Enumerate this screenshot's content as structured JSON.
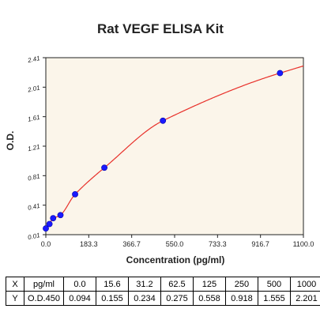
{
  "chart_data": {
    "type": "scatter",
    "title": "Rat VEGF ELISA Kit",
    "xlabel": "Concentration (pg/ml)",
    "ylabel": "O.D.",
    "xlim": [
      0,
      1100
    ],
    "ylim": [
      0.01,
      2.41
    ],
    "xticks": [
      0,
      183.3,
      366.7,
      550.0,
      733.3,
      916.7,
      1100.0
    ],
    "xtick_labels": [
      "0.0",
      "183.3",
      "366.7",
      "550.0",
      "733.3",
      "916.7",
      "1100.0"
    ],
    "yticks": [
      0.01,
      0.41,
      0.81,
      1.21,
      1.61,
      2.01,
      2.41
    ],
    "ytick_labels": [
      "0.01",
      "0.41",
      "0.81",
      "1.21",
      "1.61",
      "2.01",
      "2.41"
    ],
    "points": [
      {
        "x": 0.0,
        "y": 0.094
      },
      {
        "x": 15.6,
        "y": 0.155
      },
      {
        "x": 31.2,
        "y": 0.234
      },
      {
        "x": 62.5,
        "y": 0.275
      },
      {
        "x": 125,
        "y": 0.558
      },
      {
        "x": 250,
        "y": 0.918
      },
      {
        "x": 500,
        "y": 1.555
      },
      {
        "x": 1000,
        "y": 2.201
      }
    ],
    "curve_color": "#e8302a",
    "point_color": "#1a1aff",
    "plot_bg": "#fbf5ea",
    "grid": false
  },
  "table": {
    "rows": [
      [
        "X",
        "pg/ml",
        "0.0",
        "15.6",
        "31.2",
        "62.5",
        "125",
        "250",
        "500",
        "1000"
      ],
      [
        "Y",
        "O.D.450",
        "0.094",
        "0.155",
        "0.234",
        "0.275",
        "0.558",
        "0.918",
        "1.555",
        "2.201"
      ]
    ]
  }
}
